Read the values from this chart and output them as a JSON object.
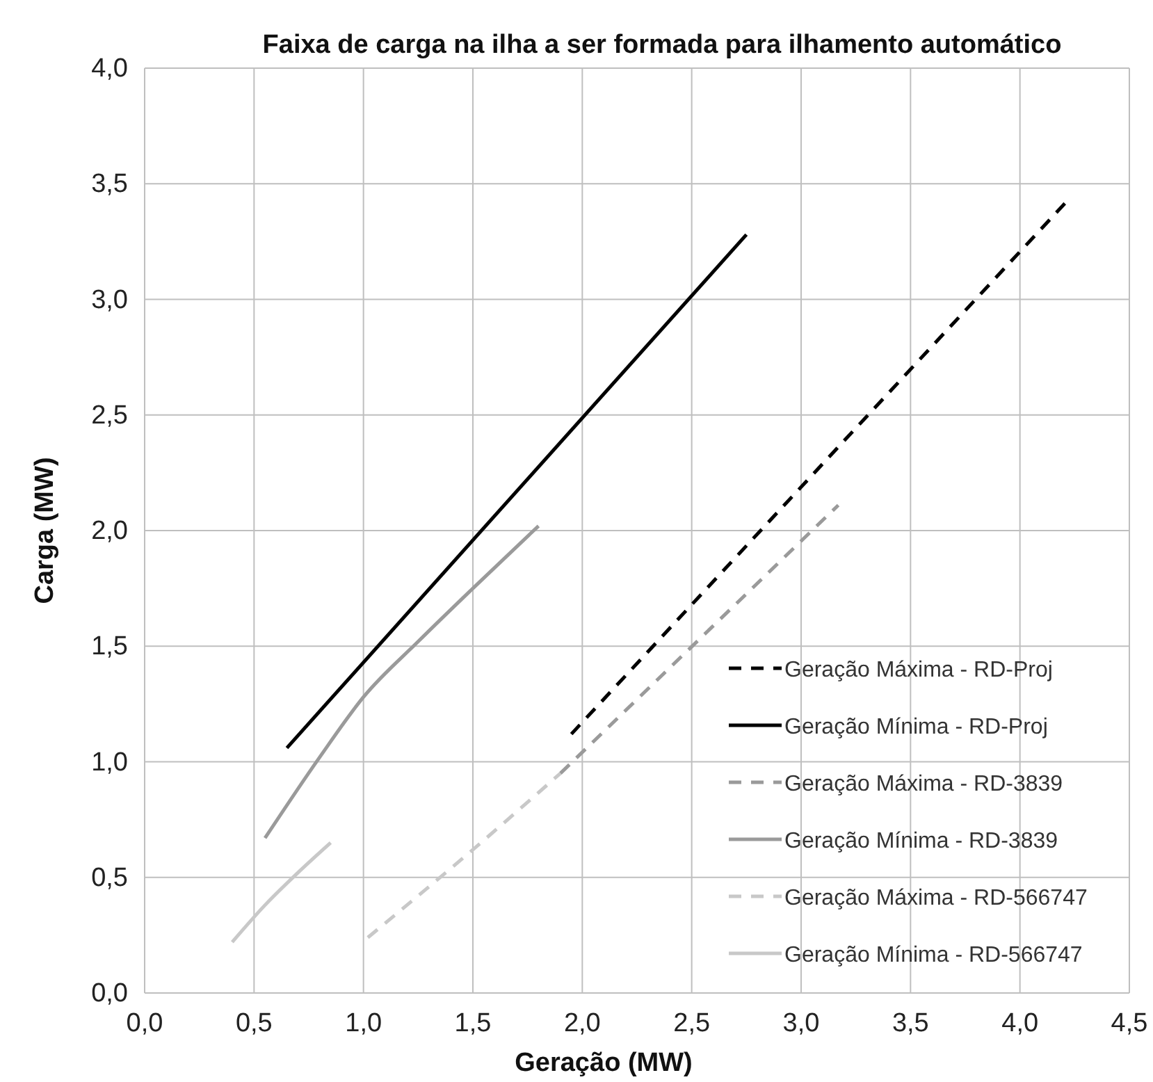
{
  "chart_data": {
    "type": "line",
    "title": "Faixa de carga na ilha a ser formada para ilhamento automático",
    "xlabel": "Geração (MW)",
    "ylabel": "Carga (MW)",
    "xlim": [
      0,
      4.5
    ],
    "xticks": [
      {
        "value": 0,
        "label": "0,0"
      },
      {
        "value": 0.5,
        "label": "0,5"
      },
      {
        "value": 1,
        "label": "1,0"
      },
      {
        "value": 1.5,
        "label": "1,5"
      },
      {
        "value": 2,
        "label": "2,0"
      },
      {
        "value": 2.5,
        "label": "2,5"
      },
      {
        "value": 3,
        "label": "3,0"
      },
      {
        "value": 3.5,
        "label": "3,5"
      },
      {
        "value": 4,
        "label": "4,0"
      },
      {
        "value": 4.5,
        "label": "4,5"
      }
    ],
    "ylim": [
      0,
      4
    ],
    "yticks": [
      {
        "value": 0,
        "label": "0,0"
      },
      {
        "value": 0.5,
        "label": "0,5"
      },
      {
        "value": 1,
        "label": "1,0"
      },
      {
        "value": 1.5,
        "label": "1,5"
      },
      {
        "value": 2,
        "label": "2,0"
      },
      {
        "value": 2.5,
        "label": "2,5"
      },
      {
        "value": 3,
        "label": "3,0"
      },
      {
        "value": 3.5,
        "label": "3,5"
      },
      {
        "value": 4,
        "label": "4,0"
      }
    ],
    "grid": true,
    "legend": "bottom right",
    "marker": "none",
    "series": [
      {
        "name": "Geração Máxima - RD-Proj",
        "color": "#000000",
        "line_style": "dashed",
        "x": [
          1.95,
          4.22
        ],
        "values": [
          1.12,
          3.43
        ]
      },
      {
        "name": "Geração Mínima - RD-Proj",
        "color": "#000000",
        "line_style": "solid",
        "x": [
          0.65,
          2.75
        ],
        "values": [
          1.06,
          3.28
        ]
      },
      {
        "name": "Geração Máxima - RD-3839",
        "color": "#9a9a9a",
        "line_style": "dashed",
        "x": [
          1.9,
          3.17
        ],
        "values": [
          0.95,
          2.11
        ]
      },
      {
        "name": "Geração Mínima - RD-3839",
        "color": "#9a9a9a",
        "line_style": "solid",
        "x": [
          0.55,
          0.8,
          1.0,
          1.25,
          1.5,
          1.8
        ],
        "values": [
          0.67,
          1.02,
          1.28,
          1.52,
          1.75,
          2.02
        ]
      },
      {
        "name": "Geração Máxima - RD-566747",
        "color": "#c8c8c8",
        "line_style": "dashed",
        "x": [
          1.02,
          1.5,
          1.9
        ],
        "values": [
          0.24,
          0.62,
          0.95
        ]
      },
      {
        "name": "Geração Mínima - RD-566747",
        "color": "#c8c8c8",
        "line_style": "solid",
        "x": [
          0.4,
          0.55,
          0.7,
          0.85
        ],
        "values": [
          0.22,
          0.38,
          0.52,
          0.65
        ]
      }
    ]
  }
}
